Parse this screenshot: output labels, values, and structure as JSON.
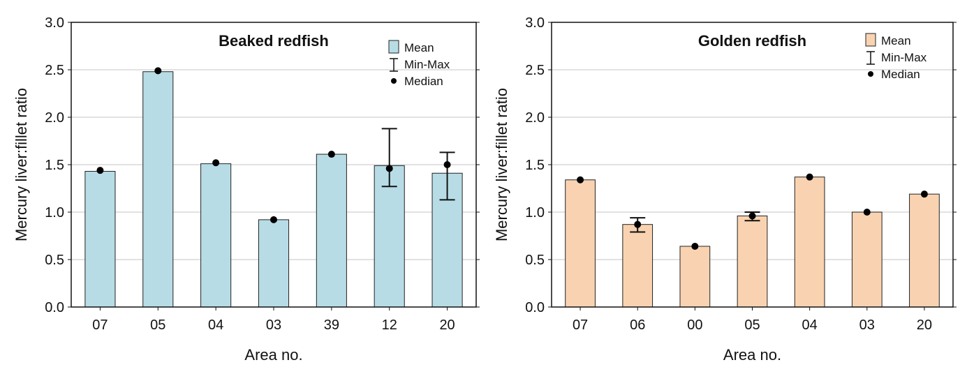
{
  "chart_data": [
    {
      "type": "bar",
      "title": "Beaked redfish",
      "xlabel": "Area no.",
      "ylabel": "Mercury liver:fillet ratio",
      "ylim": [
        0,
        3
      ],
      "yticks": [
        "0.0",
        "0.5",
        "1.0",
        "1.5",
        "2.0",
        "2.5",
        "3.0"
      ],
      "grid": true,
      "legend_position": "top-right",
      "legend": [
        "Mean",
        "Min-Max",
        "Median"
      ],
      "color": "#b7dce6",
      "categories": [
        "07",
        "05",
        "04",
        "03",
        "39",
        "12",
        "20"
      ],
      "mean": [
        1.43,
        2.48,
        1.51,
        0.92,
        1.61,
        1.49,
        1.41
      ],
      "median": [
        1.44,
        2.49,
        1.52,
        0.92,
        1.61,
        1.46,
        1.5
      ],
      "min": [
        null,
        null,
        null,
        null,
        null,
        1.27,
        1.13
      ],
      "max": [
        null,
        null,
        null,
        null,
        null,
        1.88,
        1.63
      ]
    },
    {
      "type": "bar",
      "title": "Golden redfish",
      "xlabel": "Area no.",
      "ylabel": "Mercury liver:fillet ratio",
      "ylim": [
        0,
        3
      ],
      "yticks": [
        "0.0",
        "0.5",
        "1.0",
        "1.5",
        "2.0",
        "2.5",
        "3.0"
      ],
      "grid": true,
      "legend_position": "top-right",
      "legend": [
        "Mean",
        "Min-Max",
        "Median"
      ],
      "color": "#f9d3b1",
      "categories": [
        "07",
        "06",
        "00",
        "05",
        "04",
        "03",
        "20"
      ],
      "mean": [
        1.34,
        0.87,
        0.64,
        0.96,
        1.37,
        1.0,
        1.19
      ],
      "median": [
        1.34,
        0.87,
        0.64,
        0.96,
        1.37,
        1.0,
        1.19
      ],
      "min": [
        null,
        0.79,
        null,
        0.91,
        null,
        null,
        null
      ],
      "max": [
        null,
        0.94,
        null,
        1.0,
        null,
        null,
        null
      ]
    }
  ]
}
